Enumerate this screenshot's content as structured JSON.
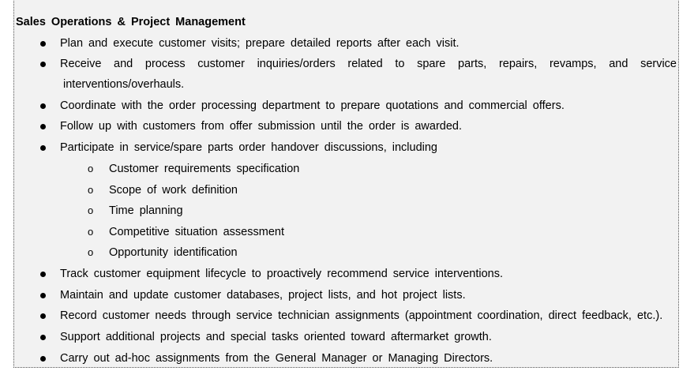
{
  "section": {
    "heading": "Sales Operations & Project Management",
    "items": [
      {
        "text": "Plan and execute customer visits; prepare detailed reports after each visit."
      },
      {
        "text": "Receive and process customer inquiries/orders related to spare parts, repairs, revamps, and service",
        "continuation": "interventions/overhauls."
      },
      {
        "text": "Coordinate with the order processing department to prepare quotations and commercial offers."
      },
      {
        "text": "Follow up with customers from offer submission until the order is awarded."
      },
      {
        "text": "Participate in service/spare parts order handover discussions, including"
      },
      {
        "text": "Track customer equipment lifecycle to proactively recommend service interventions."
      },
      {
        "text": "Maintain and update customer databases, project lists, and hot project lists."
      },
      {
        "text": "Record customer needs through service technician assignments (appointment coordination, direct feedback, etc.)."
      },
      {
        "text": "Support additional projects and special tasks oriented toward aftermarket growth."
      },
      {
        "text": "Carry out ad-hoc assignments from the General Manager or Managing Directors."
      }
    ],
    "subitems": [
      "Customer requirements specification",
      "Scope of work definition",
      "Time planning",
      "Competitive situation assessment",
      "Opportunity identification"
    ],
    "sub_marker": "o"
  }
}
